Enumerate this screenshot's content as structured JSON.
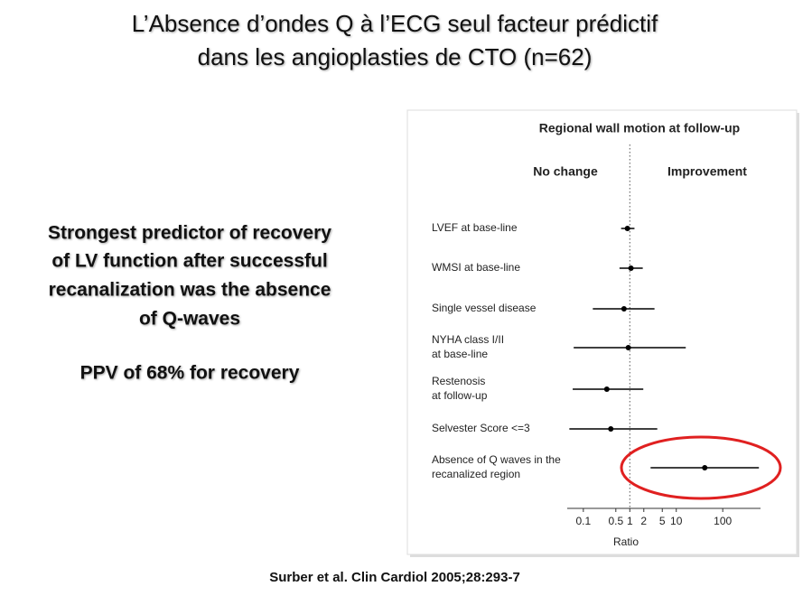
{
  "title_lines": [
    "L’Absence d’ondes Q à l’ECG seul facteur prédictif",
    "dans les angioplasties de  CTO (n=62)"
  ],
  "left_text": [
    "Strongest predictor of recovery",
    "of LV function after successful",
    "recanalization was the absence",
    "of Q-waves"
  ],
  "ppv_text": "PPV of 68% for recovery",
  "citation": "Surber et al. Clin Cardiol 2005;28:293-7",
  "chart_data": {
    "type": "forest",
    "title": "Regional wall motion at follow-up",
    "left_label": "No change",
    "right_label": "Improvement",
    "xlabel": "Ratio",
    "categories": [
      "LVEF at base-line",
      "WMSI at base-line",
      "Single vessel disease",
      "NYHA class I/II\nat base-line",
      "Restenosis\nat follow-up",
      "Selvester Score <=3",
      "Absence of Q waves in the\nrecanalized region"
    ],
    "values": [
      0.89,
      1.06,
      0.75,
      0.93,
      0.32,
      0.39,
      41
    ],
    "lower": [
      0.65,
      0.6,
      0.16,
      0.062,
      0.059,
      0.05,
      2.8
    ],
    "upper": [
      1.26,
      1.9,
      3.4,
      16,
      1.95,
      3.9,
      600
    ],
    "reference_line": 1,
    "xlog": true,
    "xlim": [
      0.045,
      650
    ],
    "xticks": [
      0.1,
      0.5,
      1,
      2,
      5,
      10,
      100
    ],
    "color": "#000000",
    "highlight_color": "#e02020"
  }
}
